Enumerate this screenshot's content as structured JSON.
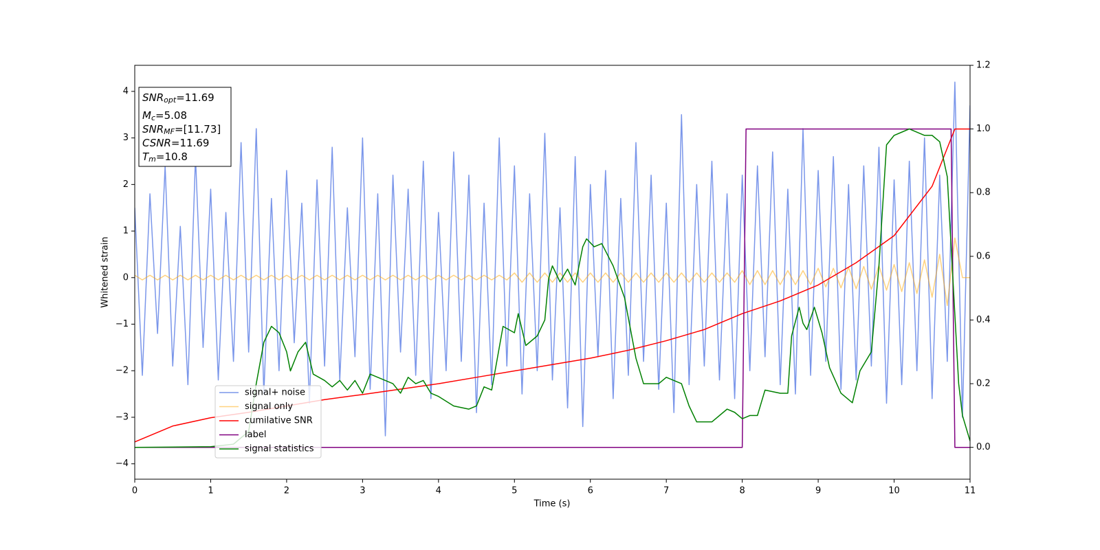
{
  "chart_data": {
    "type": "line",
    "xlabel": "Time (s)",
    "ylabel": "Whitened strain",
    "xlim": [
      0,
      11
    ],
    "ylim": [
      -4.33,
      4.56
    ],
    "y2lim": [
      -0.1,
      1.2
    ],
    "xticks": [
      0,
      1,
      2,
      3,
      4,
      5,
      6,
      7,
      8,
      9,
      10,
      11
    ],
    "yticks": [
      {
        "value": -4,
        "label": "−4"
      },
      {
        "value": -3,
        "label": "−3"
      },
      {
        "value": -2,
        "label": "−2"
      },
      {
        "value": -1,
        "label": "−1"
      },
      0,
      1,
      2,
      3,
      4
    ],
    "y2ticks": [
      {
        "value": 0,
        "label": "0.0"
      },
      0.2,
      0.4,
      0.6,
      0.8,
      {
        "value": 1,
        "label": "1.0"
      },
      1.2
    ],
    "legend": "lower left",
    "annotations": [
      {
        "main": "SNR",
        "sub": "opt",
        "rest": "=11.69"
      },
      {
        "main": "M",
        "sub": "c",
        "rest": "=5.08"
      },
      {
        "main": "SNR",
        "sub": "MF",
        "rest": "=[11.73]"
      },
      {
        "main": "CSNR",
        "rest": "=11.69"
      },
      {
        "main": "T",
        "sub": "m",
        "rest": "=10.8"
      }
    ],
    "x": [
      0,
      0.1,
      0.2,
      0.3,
      0.4,
      0.5,
      0.6,
      0.7,
      0.8,
      0.9,
      1,
      1.1,
      1.2,
      1.3,
      1.4,
      1.5,
      1.6,
      1.7,
      1.8,
      1.9,
      2,
      2.1,
      2.2,
      2.3,
      2.4,
      2.5,
      2.6,
      2.7,
      2.8,
      2.9,
      3,
      3.1,
      3.2,
      3.3,
      3.4,
      3.5,
      3.6,
      3.7,
      3.8,
      3.9,
      4,
      4.1,
      4.2,
      4.3,
      4.4,
      4.5,
      4.6,
      4.7,
      4.8,
      4.9,
      5,
      5.1,
      5.2,
      5.3,
      5.4,
      5.5,
      5.6,
      5.7,
      5.8,
      5.9,
      6,
      6.1,
      6.2,
      6.3,
      6.4,
      6.5,
      6.6,
      6.7,
      6.8,
      6.9,
      7,
      7.1,
      7.2,
      7.3,
      7.4,
      7.5,
      7.6,
      7.7,
      7.8,
      7.9,
      8,
      8.1,
      8.2,
      8.3,
      8.4,
      8.5,
      8.6,
      8.7,
      8.8,
      8.9,
      9,
      9.1,
      9.2,
      9.3,
      9.4,
      9.5,
      9.6,
      9.7,
      9.8,
      9.9,
      10,
      10.1,
      10.2,
      10.3,
      10.4,
      10.5,
      10.6,
      10.7,
      10.8,
      10.9,
      11
    ],
    "series": [
      {
        "name": "signal+ noise",
        "color": "#4169e1",
        "opacity": 0.7,
        "values": [
          1.5,
          -2.1,
          1.8,
          -1.2,
          2.4,
          -1.9,
          1.1,
          -2.3,
          2.6,
          -1.5,
          1.9,
          -2.2,
          1.4,
          -1.8,
          2.9,
          -1.6,
          3.2,
          -2.5,
          1.7,
          -2.0,
          2.3,
          -1.4,
          1.6,
          -2.7,
          2.1,
          -1.9,
          2.8,
          -2.2,
          1.5,
          -1.7,
          3.0,
          -2.4,
          1.8,
          -3.4,
          2.2,
          -1.6,
          1.9,
          -2.1,
          2.5,
          -2.6,
          1.4,
          -2.0,
          2.7,
          -1.8,
          2.2,
          -2.9,
          1.6,
          -2.3,
          3.0,
          -1.9,
          2.4,
          -2.5,
          1.8,
          -2.0,
          3.1,
          -2.2,
          1.5,
          -2.8,
          2.6,
          -3.2,
          2.0,
          -1.7,
          2.3,
          -2.6,
          1.7,
          -2.1,
          2.9,
          -1.8,
          2.2,
          -2.4,
          1.6,
          -2.9,
          3.5,
          -2.3,
          2.0,
          -1.9,
          2.5,
          -2.2,
          1.8,
          -2.6,
          2.2,
          -2.0,
          2.4,
          -1.7,
          2.7,
          -2.3,
          1.9,
          -2.5,
          3.2,
          -2.1,
          2.3,
          -1.8,
          2.6,
          -2.4,
          2.0,
          -2.2,
          2.4,
          -1.9,
          2.8,
          -2.7,
          2.1,
          -2.3,
          2.5,
          -2.0,
          3.0,
          -2.6,
          2.2,
          -1.8,
          4.2,
          -3.0,
          3.7
        ]
      },
      {
        "name": "signal only",
        "color": "#ffa500",
        "opacity": 0.5,
        "values": [
          0.05,
          -0.05,
          0.05,
          -0.05,
          0.05,
          -0.05,
          0.05,
          -0.05,
          0.05,
          -0.05,
          0.05,
          -0.05,
          0.05,
          -0.05,
          0.05,
          -0.05,
          0.05,
          -0.05,
          0.05,
          -0.05,
          0.05,
          -0.05,
          0.05,
          -0.05,
          0.05,
          -0.05,
          0.05,
          -0.05,
          0.05,
          -0.05,
          0.05,
          -0.05,
          0.05,
          -0.05,
          0.05,
          -0.05,
          0.05,
          -0.05,
          0.05,
          -0.05,
          0.05,
          -0.05,
          0.05,
          -0.05,
          0.05,
          -0.05,
          0.05,
          -0.05,
          0.05,
          -0.05,
          0.1,
          -0.1,
          0.1,
          -0.1,
          0.1,
          -0.1,
          0.1,
          -0.1,
          0.1,
          -0.1,
          0.1,
          -0.1,
          0.1,
          -0.1,
          0.1,
          -0.1,
          0.1,
          -0.1,
          0.1,
          -0.1,
          0.1,
          -0.1,
          0.1,
          -0.1,
          0.1,
          -0.1,
          0.1,
          -0.1,
          0.1,
          -0.1,
          0.15,
          -0.15,
          0.15,
          -0.15,
          0.15,
          -0.15,
          0.15,
          -0.15,
          0.15,
          -0.15,
          0.2,
          -0.2,
          0.2,
          -0.22,
          0.22,
          -0.24,
          0.24,
          -0.25,
          0.26,
          -0.27,
          0.28,
          -0.3,
          0.32,
          -0.34,
          0.38,
          -0.42,
          0.5,
          -0.6,
          0.85,
          0,
          0
        ]
      },
      {
        "name": "cumilative SNR",
        "color": "#ff0000",
        "opacity": 1,
        "axis": "y2",
        "x": [
          0,
          0.5,
          1,
          1.5,
          2,
          2.5,
          3,
          3.5,
          4,
          4.5,
          5,
          5.5,
          6,
          6.5,
          7,
          7.5,
          8,
          8.5,
          9,
          9.5,
          10,
          10.5,
          10.7,
          10.8,
          11
        ],
        "values": [
          0.017,
          0.067,
          0.093,
          0.11,
          0.13,
          0.15,
          0.166,
          0.183,
          0.2,
          0.22,
          0.24,
          0.26,
          0.28,
          0.305,
          0.335,
          0.37,
          0.42,
          0.46,
          0.51,
          0.58,
          0.665,
          0.82,
          0.94,
          1.0,
          1.0
        ]
      },
      {
        "name": "label",
        "color": "#800080",
        "opacity": 1,
        "axis": "y2",
        "x": [
          0,
          8,
          8.05,
          10.75,
          10.8,
          11
        ],
        "values": [
          0,
          0,
          1,
          1,
          0,
          0
        ]
      },
      {
        "name": "signal statistics",
        "color": "#008000",
        "opacity": 1,
        "axis": "y2",
        "x": [
          0,
          1,
          1.3,
          1.5,
          1.6,
          1.7,
          1.8,
          1.9,
          2.0,
          2.05,
          2.15,
          2.25,
          2.35,
          2.5,
          2.6,
          2.7,
          2.8,
          2.9,
          3.0,
          3.1,
          3.2,
          3.4,
          3.5,
          3.6,
          3.7,
          3.8,
          3.9,
          4.0,
          4.2,
          4.4,
          4.5,
          4.6,
          4.7,
          4.85,
          5.0,
          5.05,
          5.15,
          5.3,
          5.4,
          5.45,
          5.5,
          5.6,
          5.7,
          5.8,
          5.9,
          5.95,
          6.05,
          6.15,
          6.3,
          6.45,
          6.6,
          6.7,
          6.8,
          6.9,
          7.0,
          7.2,
          7.3,
          7.4,
          7.6,
          7.8,
          7.9,
          8.0,
          8.1,
          8.2,
          8.3,
          8.5,
          8.6,
          8.65,
          8.75,
          8.8,
          8.85,
          8.95,
          9.05,
          9.15,
          9.3,
          9.45,
          9.55,
          9.7,
          9.8,
          9.9,
          10.0,
          10.1,
          10.2,
          10.4,
          10.5,
          10.6,
          10.7,
          10.85,
          10.9,
          11.0
        ],
        "values": [
          0,
          0.002,
          0.01,
          0.05,
          0.2,
          0.33,
          0.38,
          0.36,
          0.3,
          0.24,
          0.3,
          0.33,
          0.23,
          0.21,
          0.19,
          0.21,
          0.18,
          0.21,
          0.17,
          0.23,
          0.22,
          0.2,
          0.17,
          0.22,
          0.2,
          0.21,
          0.17,
          0.16,
          0.13,
          0.12,
          0.13,
          0.19,
          0.18,
          0.38,
          0.36,
          0.42,
          0.32,
          0.35,
          0.4,
          0.53,
          0.57,
          0.52,
          0.56,
          0.51,
          0.63,
          0.655,
          0.63,
          0.64,
          0.57,
          0.47,
          0.28,
          0.2,
          0.2,
          0.2,
          0.22,
          0.2,
          0.13,
          0.08,
          0.08,
          0.12,
          0.11,
          0.09,
          0.1,
          0.1,
          0.18,
          0.17,
          0.17,
          0.35,
          0.44,
          0.39,
          0.37,
          0.44,
          0.36,
          0.25,
          0.17,
          0.14,
          0.24,
          0.3,
          0.57,
          0.95,
          0.98,
          0.99,
          1.0,
          0.98,
          0.98,
          0.96,
          0.85,
          0.2,
          0.1,
          0.02
        ]
      }
    ]
  }
}
